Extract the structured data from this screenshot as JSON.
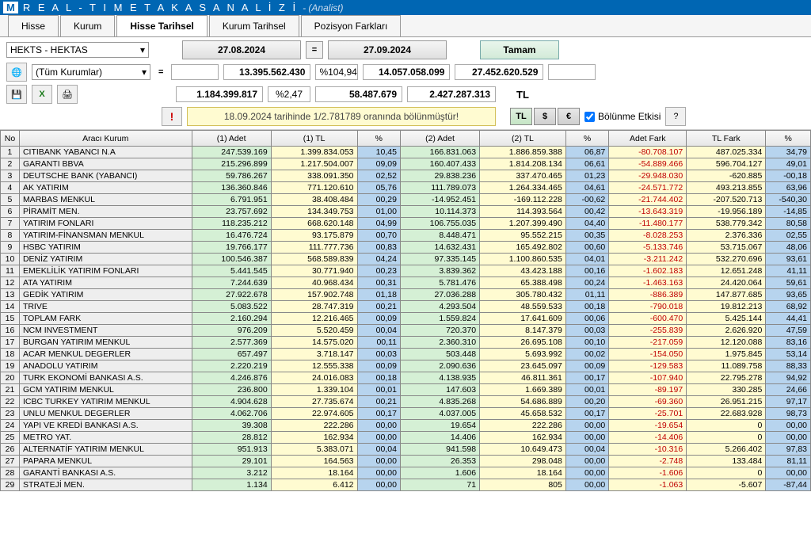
{
  "title": {
    "letters": "R E A L - T I M E   T A K A S   A N A L İ Z İ",
    "sub": "- (Analist)"
  },
  "tabs": [
    "Hisse",
    "Kurum",
    "Hisse Tarihsel",
    "Kurum Tarihsel",
    "Pozisyon Farkları"
  ],
  "activeTab": 2,
  "stockSelect": "HEKTS - HEKTAS",
  "kurumSelect": "(Tüm Kurumlar)",
  "date1": "27.08.2024",
  "date2": "27.09.2024",
  "tamam": "Tamam",
  "summary": {
    "r1": {
      "c1": "13.395.562.430",
      "c2": "%104,94",
      "c3": "14.057.058.099",
      "c4": "27.452.620.529"
    },
    "r2": {
      "c1": "1.184.399.817",
      "c2": "%2,47",
      "c3": "58.487.679",
      "c4": "2.427.287.313"
    }
  },
  "tlLabel": "TL",
  "currencies": [
    "TL",
    "$",
    "€"
  ],
  "message": "18.09.2024 tarihinde 1/2.781789 oranında bölünmüştür!",
  "bolunme": "Bölünme Etkisi",
  "headers": [
    "No",
    "Aracı Kurum",
    "(1) Adet",
    "(1) TL",
    "%",
    "(2) Adet",
    "(2) TL",
    "%",
    "Adet Fark",
    "TL Fark",
    "%"
  ],
  "rows": [
    {
      "no": 1,
      "name": "CITIBANK YABANCI N.A",
      "a1": "247.539.169",
      "t1": "1.399.834.053",
      "p1": "10,45",
      "a2": "166.831.063",
      "t2": "1.886.859.388",
      "p2": "06,87",
      "af": "-80.708.107",
      "tf": "487.025.334",
      "p3": "34,79"
    },
    {
      "no": 2,
      "name": "GARANTI BBVA",
      "a1": "215.296.899",
      "t1": "1.217.504.007",
      "p1": "09,09",
      "a2": "160.407.433",
      "t2": "1.814.208.134",
      "p2": "06,61",
      "af": "-54.889.466",
      "tf": "596.704.127",
      "p3": "49,01"
    },
    {
      "no": 3,
      "name": "DEUTSCHE BANK (YABANCI)",
      "a1": "59.786.267",
      "t1": "338.091.350",
      "p1": "02,52",
      "a2": "29.838.236",
      "t2": "337.470.465",
      "p2": "01,23",
      "af": "-29.948.030",
      "tf": "-620.885",
      "p3": "-00,18"
    },
    {
      "no": 4,
      "name": "AK YATIRIM",
      "a1": "136.360.846",
      "t1": "771.120.610",
      "p1": "05,76",
      "a2": "111.789.073",
      "t2": "1.264.334.465",
      "p2": "04,61",
      "af": "-24.571.772",
      "tf": "493.213.855",
      "p3": "63,96"
    },
    {
      "no": 5,
      "name": "MARBAS MENKUL",
      "a1": "6.791.951",
      "t1": "38.408.484",
      "p1": "00,29",
      "a2": "-14.952.451",
      "t2": "-169.112.228",
      "p2": "-00,62",
      "af": "-21.744.402",
      "tf": "-207.520.713",
      "p3": "-540,30"
    },
    {
      "no": 6,
      "name": "PİRAMİT MEN.",
      "a1": "23.757.692",
      "t1": "134.349.753",
      "p1": "01,00",
      "a2": "10.114.373",
      "t2": "114.393.564",
      "p2": "00,42",
      "af": "-13.643.319",
      "tf": "-19.956.189",
      "p3": "-14,85"
    },
    {
      "no": 7,
      "name": "YATIRIM FONLARI",
      "a1": "118.235.212",
      "t1": "668.620.148",
      "p1": "04,99",
      "a2": "106.755.035",
      "t2": "1.207.399.490",
      "p2": "04,40",
      "af": "-11.480.177",
      "tf": "538.779.342",
      "p3": "80,58"
    },
    {
      "no": 8,
      "name": "YATIRIM-FİNANSMAN MENKUL",
      "a1": "16.476.724",
      "t1": "93.175.879",
      "p1": "00,70",
      "a2": "8.448.471",
      "t2": "95.552.215",
      "p2": "00,35",
      "af": "-8.028.253",
      "tf": "2.376.336",
      "p3": "02,55"
    },
    {
      "no": 9,
      "name": "HSBC YATIRIM",
      "a1": "19.766.177",
      "t1": "111.777.736",
      "p1": "00,83",
      "a2": "14.632.431",
      "t2": "165.492.802",
      "p2": "00,60",
      "af": "-5.133.746",
      "tf": "53.715.067",
      "p3": "48,06"
    },
    {
      "no": 10,
      "name": "DENİZ YATIRIM",
      "a1": "100.546.387",
      "t1": "568.589.839",
      "p1": "04,24",
      "a2": "97.335.145",
      "t2": "1.100.860.535",
      "p2": "04,01",
      "af": "-3.211.242",
      "tf": "532.270.696",
      "p3": "93,61"
    },
    {
      "no": 11,
      "name": "EMEKLİLİK YATIRIM FONLARI",
      "a1": "5.441.545",
      "t1": "30.771.940",
      "p1": "00,23",
      "a2": "3.839.362",
      "t2": "43.423.188",
      "p2": "00,16",
      "af": "-1.602.183",
      "tf": "12.651.248",
      "p3": "41,11"
    },
    {
      "no": 12,
      "name": "ATA YATIRIM",
      "a1": "7.244.639",
      "t1": "40.968.434",
      "p1": "00,31",
      "a2": "5.781.476",
      "t2": "65.388.498",
      "p2": "00,24",
      "af": "-1.463.163",
      "tf": "24.420.064",
      "p3": "59,61"
    },
    {
      "no": 13,
      "name": "GEDİK YATIRIM",
      "a1": "27.922.678",
      "t1": "157.902.748",
      "p1": "01,18",
      "a2": "27.036.288",
      "t2": "305.780.432",
      "p2": "01,11",
      "af": "-886.389",
      "tf": "147.877.685",
      "p3": "93,65"
    },
    {
      "no": 14,
      "name": "TRIVE",
      "a1": "5.083.522",
      "t1": "28.747.319",
      "p1": "00,21",
      "a2": "4.293.504",
      "t2": "48.559.533",
      "p2": "00,18",
      "af": "-790.018",
      "tf": "19.812.213",
      "p3": "68,92"
    },
    {
      "no": 15,
      "name": "TOPLAM FARK",
      "a1": "2.160.294",
      "t1": "12.216.465",
      "p1": "00,09",
      "a2": "1.559.824",
      "t2": "17.641.609",
      "p2": "00,06",
      "af": "-600.470",
      "tf": "5.425.144",
      "p3": "44,41"
    },
    {
      "no": 16,
      "name": "NCM INVESTMENT",
      "a1": "976.209",
      "t1": "5.520.459",
      "p1": "00,04",
      "a2": "720.370",
      "t2": "8.147.379",
      "p2": "00,03",
      "af": "-255.839",
      "tf": "2.626.920",
      "p3": "47,59"
    },
    {
      "no": 17,
      "name": "BURGAN YATIRIM MENKUL",
      "a1": "2.577.369",
      "t1": "14.575.020",
      "p1": "00,11",
      "a2": "2.360.310",
      "t2": "26.695.108",
      "p2": "00,10",
      "af": "-217.059",
      "tf": "12.120.088",
      "p3": "83,16"
    },
    {
      "no": 18,
      "name": "ACAR MENKUL DEGERLER",
      "a1": "657.497",
      "t1": "3.718.147",
      "p1": "00,03",
      "a2": "503.448",
      "t2": "5.693.992",
      "p2": "00,02",
      "af": "-154.050",
      "tf": "1.975.845",
      "p3": "53,14"
    },
    {
      "no": 19,
      "name": "ANADOLU YATIRIM",
      "a1": "2.220.219",
      "t1": "12.555.338",
      "p1": "00,09",
      "a2": "2.090.636",
      "t2": "23.645.097",
      "p2": "00,09",
      "af": "-129.583",
      "tf": "11.089.758",
      "p3": "88,33"
    },
    {
      "no": 20,
      "name": "TURK EKONOMİ BANKASI A.S.",
      "a1": "4.246.876",
      "t1": "24.016.083",
      "p1": "00,18",
      "a2": "4.138.935",
      "t2": "46.811.361",
      "p2": "00,17",
      "af": "-107.940",
      "tf": "22.795.278",
      "p3": "94,92"
    },
    {
      "no": 21,
      "name": "GCM YATIRIM MENKUL",
      "a1": "236.800",
      "t1": "1.339.104",
      "p1": "00,01",
      "a2": "147.603",
      "t2": "1.669.389",
      "p2": "00,01",
      "af": "-89.197",
      "tf": "330.285",
      "p3": "24,66"
    },
    {
      "no": 22,
      "name": "ICBC TURKEY YATIRIM MENKUL",
      "a1": "4.904.628",
      "t1": "27.735.674",
      "p1": "00,21",
      "a2": "4.835.268",
      "t2": "54.686.889",
      "p2": "00,20",
      "af": "-69.360",
      "tf": "26.951.215",
      "p3": "97,17"
    },
    {
      "no": 23,
      "name": "UNLU MENKUL DEGERLER",
      "a1": "4.062.706",
      "t1": "22.974.605",
      "p1": "00,17",
      "a2": "4.037.005",
      "t2": "45.658.532",
      "p2": "00,17",
      "af": "-25.701",
      "tf": "22.683.928",
      "p3": "98,73"
    },
    {
      "no": 24,
      "name": "YAPI VE KREDİ BANKASI A.S.",
      "a1": "39.308",
      "t1": "222.286",
      "p1": "00,00",
      "a2": "19.654",
      "t2": "222.286",
      "p2": "00,00",
      "af": "-19.654",
      "tf": "0",
      "p3": "00,00"
    },
    {
      "no": 25,
      "name": "METRO YAT.",
      "a1": "28.812",
      "t1": "162.934",
      "p1": "00,00",
      "a2": "14.406",
      "t2": "162.934",
      "p2": "00,00",
      "af": "-14.406",
      "tf": "0",
      "p3": "00,00"
    },
    {
      "no": 26,
      "name": "ALTERNATİF YATIRIM MENKUL",
      "a1": "951.913",
      "t1": "5.383.071",
      "p1": "00,04",
      "a2": "941.598",
      "t2": "10.649.473",
      "p2": "00,04",
      "af": "-10.316",
      "tf": "5.266.402",
      "p3": "97,83"
    },
    {
      "no": 27,
      "name": "PAPARA MENKUL",
      "a1": "29.101",
      "t1": "164.563",
      "p1": "00,00",
      "a2": "26.353",
      "t2": "298.048",
      "p2": "00,00",
      "af": "-2.748",
      "tf": "133.484",
      "p3": "81,11"
    },
    {
      "no": 28,
      "name": "GARANTİ BANKASI A.S.",
      "a1": "3.212",
      "t1": "18.164",
      "p1": "00,00",
      "a2": "1.606",
      "t2": "18.164",
      "p2": "00,00",
      "af": "-1.606",
      "tf": "0",
      "p3": "00,00"
    },
    {
      "no": 29,
      "name": "STRATEJİ MEN.",
      "a1": "1.134",
      "t1": "6.412",
      "p1": "00,00",
      "a2": "71",
      "t2": "805",
      "p2": "00,00",
      "af": "-1.063",
      "tf": "-5.607",
      "p3": "-87,44"
    }
  ]
}
